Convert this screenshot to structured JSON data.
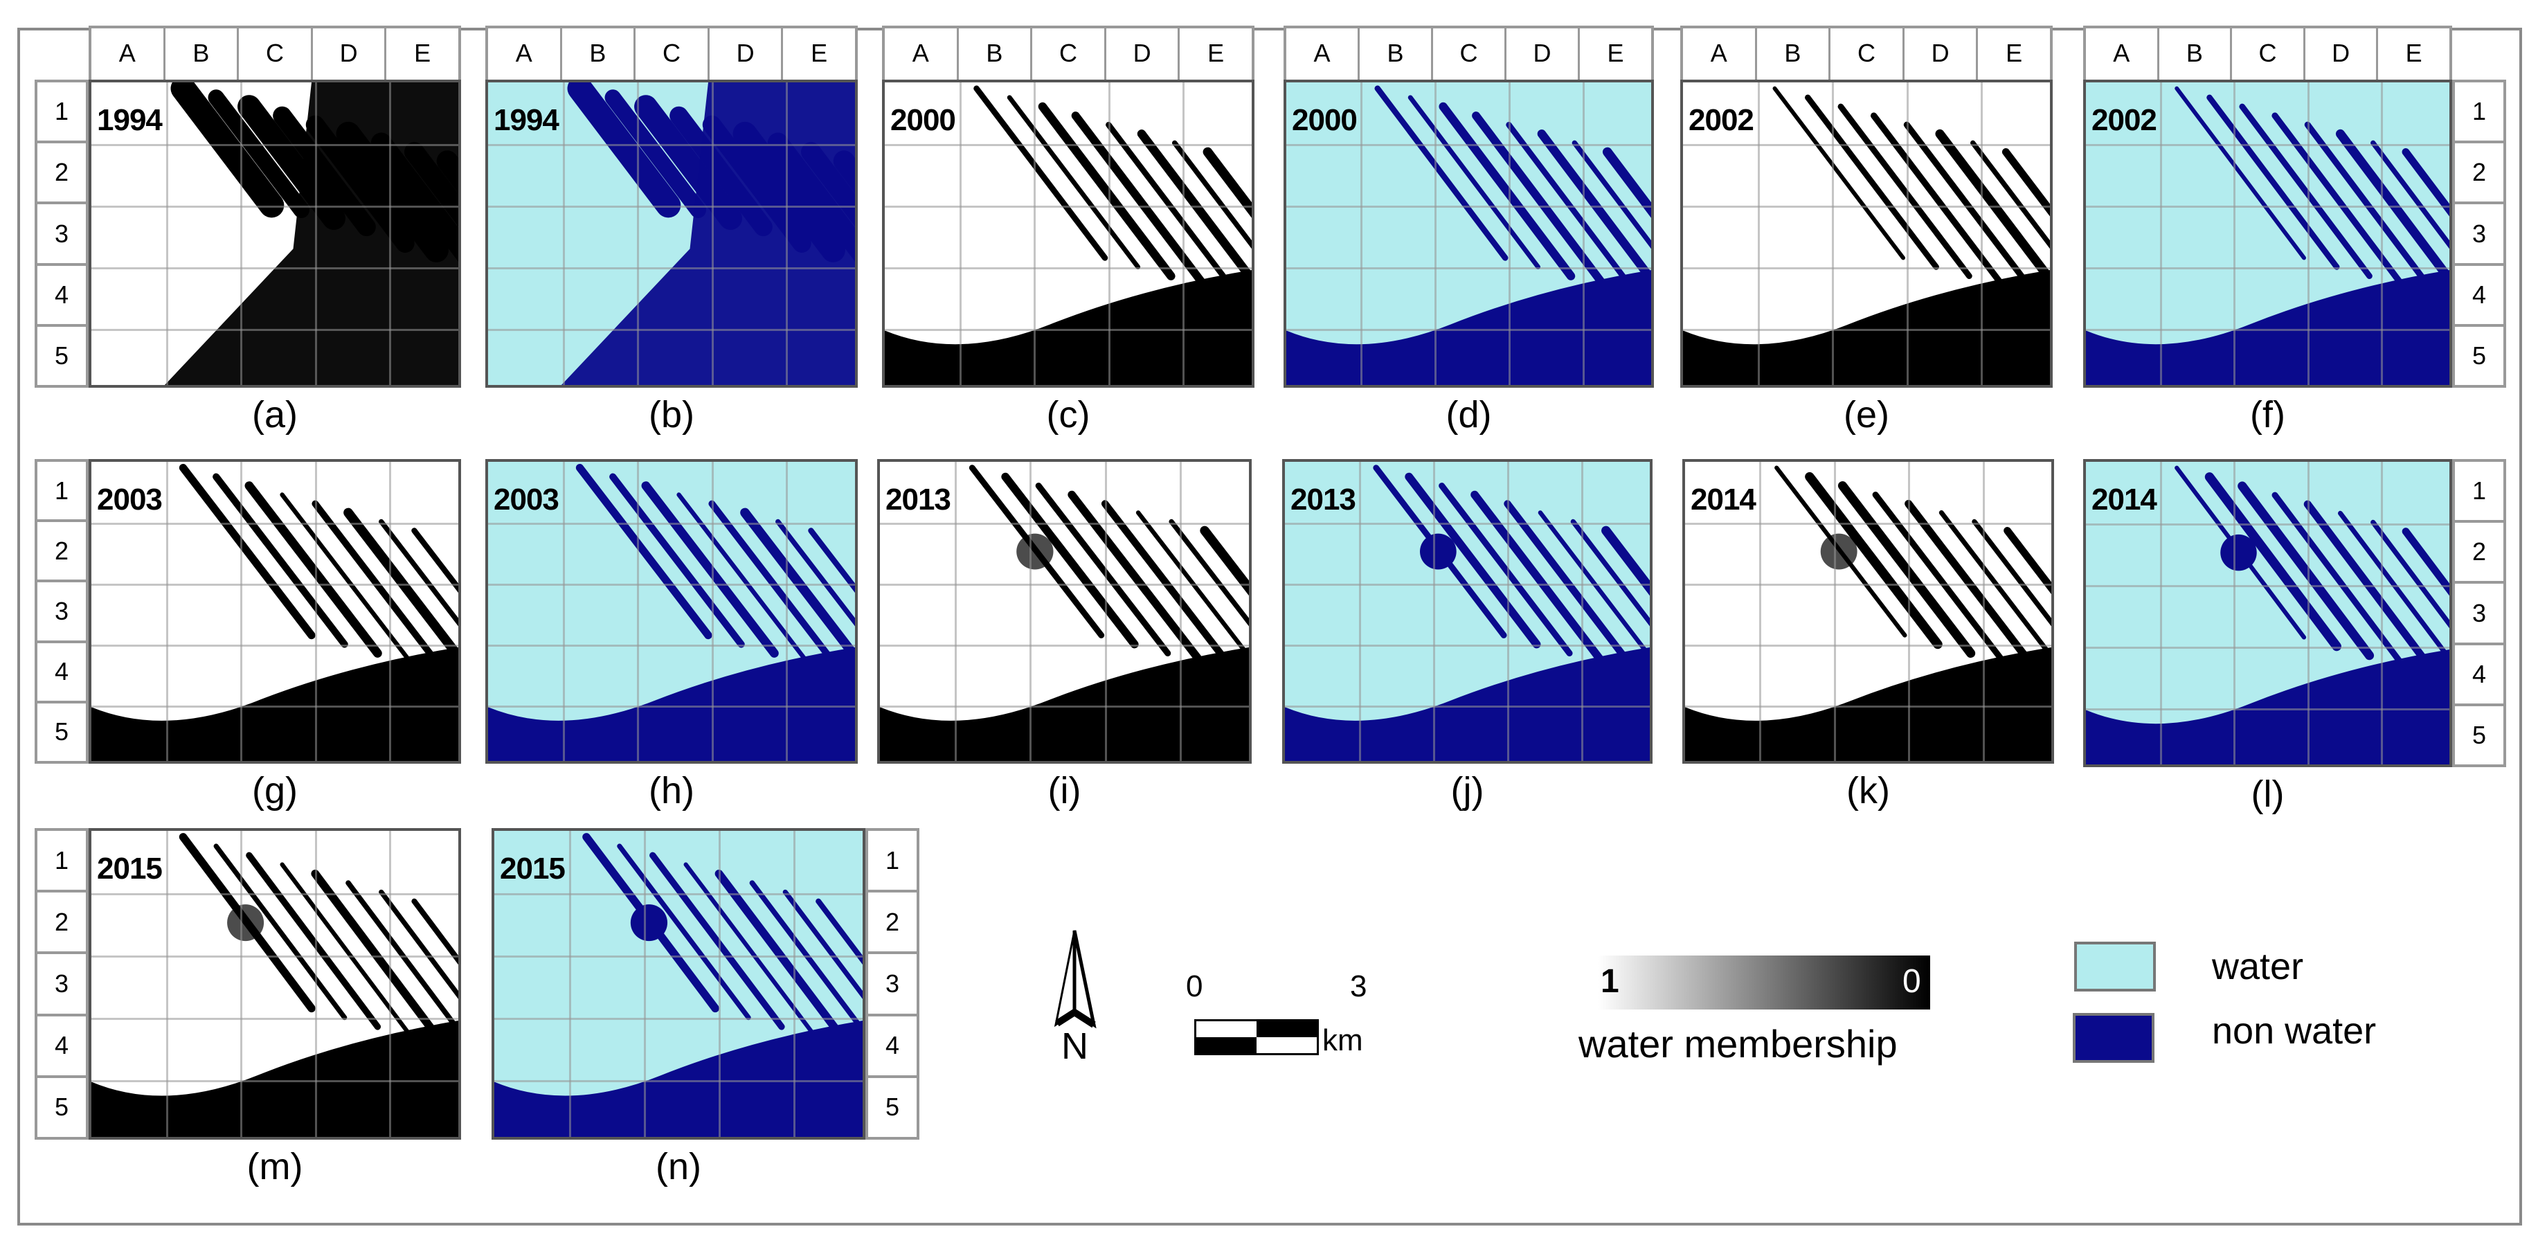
{
  "figure": {
    "column_labels": [
      "A",
      "B",
      "C",
      "D",
      "E"
    ],
    "row_labels": [
      "1",
      "2",
      "3",
      "4",
      "5"
    ],
    "panels": [
      {
        "id": "a",
        "caption": "(a)",
        "year": "1994",
        "type": "membership"
      },
      {
        "id": "b",
        "caption": "(b)",
        "year": "1994",
        "type": "classified"
      },
      {
        "id": "c",
        "caption": "(c)",
        "year": "2000",
        "type": "membership"
      },
      {
        "id": "d",
        "caption": "(d)",
        "year": "2000",
        "type": "classified"
      },
      {
        "id": "e",
        "caption": "(e)",
        "year": "2002",
        "type": "membership"
      },
      {
        "id": "f",
        "caption": "(f)",
        "year": "2002",
        "type": "classified"
      },
      {
        "id": "g",
        "caption": "(g)",
        "year": "2003",
        "type": "membership"
      },
      {
        "id": "h",
        "caption": "(h)",
        "year": "2003",
        "type": "classified"
      },
      {
        "id": "i",
        "caption": "(i)",
        "year": "2013",
        "type": "membership"
      },
      {
        "id": "j",
        "caption": "(j)",
        "year": "2013",
        "type": "classified"
      },
      {
        "id": "k",
        "caption": "(k)",
        "year": "2014",
        "type": "membership"
      },
      {
        "id": "l",
        "caption": "(l)",
        "year": "2014",
        "type": "classified"
      },
      {
        "id": "m",
        "caption": "(m)",
        "year": "2015",
        "type": "membership"
      },
      {
        "id": "n",
        "caption": "(n)",
        "year": "2015",
        "type": "classified"
      }
    ]
  },
  "north_arrow": {
    "label": "N"
  },
  "scale_bar": {
    "start": "0",
    "end": "3",
    "unit": "km"
  },
  "membership_legend": {
    "left_value": "1",
    "right_value": "0",
    "title": "water membership"
  },
  "class_legend": {
    "items": [
      {
        "label": "water",
        "color": "#b3ecee"
      },
      {
        "label": "non water",
        "color": "#0a0a8c"
      }
    ]
  },
  "colors": {
    "water": "#b3ecee",
    "non_water": "#0a0a8c",
    "frame": "#8a8a8a"
  }
}
